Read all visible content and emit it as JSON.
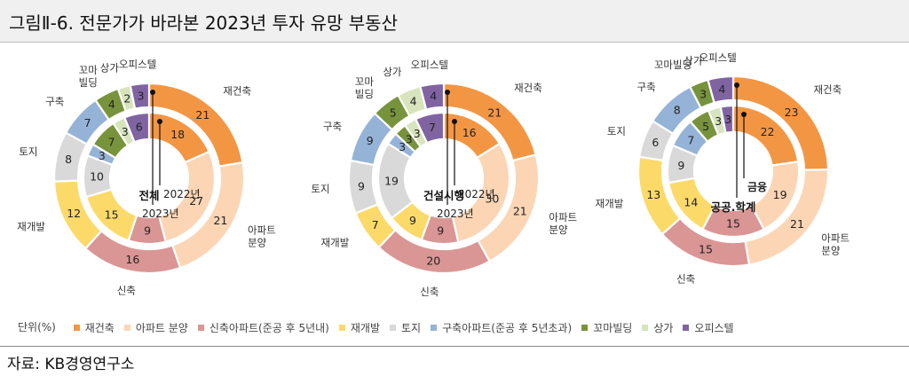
{
  "figure": {
    "title": "그림Ⅱ-6.  전문가가 바라본 2023년 투자 유망 부동산",
    "source": "자료: KB경영연구소",
    "unit_label": "단위(%)"
  },
  "legend": [
    {
      "label": "재건축",
      "color": "#F39644"
    },
    {
      "label": "아파트 분양",
      "color": "#FCD5B4"
    },
    {
      "label": "신축아파트(준공 후 5년내)",
      "color": "#DA9694"
    },
    {
      "label": "재개발",
      "color": "#FCDA6A"
    },
    {
      "label": "토지",
      "color": "#D9D9D9"
    },
    {
      "label": "구축아파트(준공 후 5년초과)",
      "color": "#95B3D7"
    },
    {
      "label": "꼬마빌딩",
      "color": "#77933C"
    },
    {
      "label": "상가",
      "color": "#D7E4BD"
    },
    {
      "label": "오피스텔",
      "color": "#8064A2"
    }
  ],
  "chart_data": [
    {
      "type": "donut",
      "center_label": "전체",
      "ring_labels": {
        "outer": "2023년",
        "inner": "2022년"
      },
      "categories": [
        "재건축",
        "아파트 분양",
        "신축",
        "재개발",
        "토지",
        "구축",
        "꼬마빌딩",
        "상가",
        "오피스텔"
      ],
      "series": [
        {
          "name": "2023년",
          "values": [
            21,
            21,
            16,
            12,
            8,
            7,
            4,
            2,
            3
          ]
        },
        {
          "name": "2022년",
          "values": [
            18,
            27,
            9,
            15,
            10,
            3,
            7,
            3,
            6
          ]
        }
      ],
      "outer_labels": [
        "재건축",
        "아파트\n분양",
        "신축",
        "재개발",
        "토지",
        "구축",
        "꼬마\n빌딩",
        "상가",
        "오피스텔"
      ]
    },
    {
      "type": "donut",
      "center_label": "건설시행",
      "ring_labels": {
        "outer": "2023년",
        "inner": "2022년"
      },
      "categories": [
        "재건축",
        "아파트 분양",
        "신축",
        "재개발",
        "토지",
        "구축",
        "꼬마빌딩",
        "상가",
        "오피스텔"
      ],
      "series": [
        {
          "name": "2023년",
          "values": [
            21,
            21,
            20,
            7,
            9,
            9,
            5,
            4,
            4
          ]
        },
        {
          "name": "2022년",
          "values": [
            16,
            30,
            9,
            9,
            19,
            3,
            3,
            3,
            7
          ]
        }
      ],
      "outer_labels": [
        "재건축",
        "아파트\n분양",
        "신축",
        "재개발",
        "토지",
        "구축",
        "꼬마\n빌딩",
        "상가",
        "오피스텔"
      ]
    },
    {
      "type": "donut",
      "center_label": "공공.학계",
      "ring_labels": {
        "outer": "",
        "inner": "금융"
      },
      "categories": [
        "재건축",
        "아파트 분양",
        "신축",
        "재개발",
        "토지",
        "구축",
        "꼬마빌딩",
        "상가",
        "오피스텔"
      ],
      "series": [
        {
          "name": "공공.학계",
          "values": [
            23,
            21,
            15,
            13,
            6,
            8,
            3,
            0,
            4
          ]
        },
        {
          "name": "금융",
          "values": [
            22,
            19,
            15,
            14,
            9,
            7,
            5,
            3,
            3
          ]
        }
      ],
      "outer_labels": [
        "재건축",
        "아파트\n분양",
        "신축",
        "재개발",
        "토지",
        "구축",
        "꼬마빌딩",
        "상가",
        "오피스텔"
      ]
    }
  ]
}
